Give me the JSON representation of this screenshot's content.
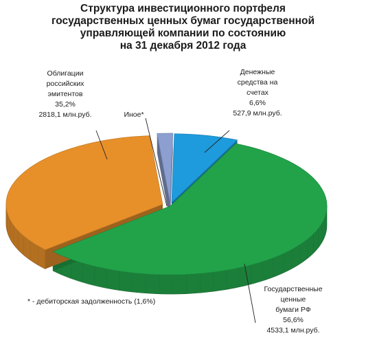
{
  "title_lines": [
    "Структура инвестиционного портфеля",
    "государственных ценных бумаг государственной",
    "управляющей компании по состоянию",
    "на 31 декабря 2012 года"
  ],
  "footnote": "*  -  дебиторская задолженность (1,6%)",
  "chart_data": {
    "type": "pie",
    "style": "3d-exploded",
    "slices": [
      {
        "name_lines": [
          "Денежные",
          "средства на",
          "счетах"
        ],
        "percent_label": "6,6%",
        "amount_label": "527,9 млн.руб.",
        "value": 6.6,
        "color": "#1e9bdc"
      },
      {
        "name_lines": [
          "Государственные",
          "ценные",
          "бумаги РФ"
        ],
        "percent_label": "56,6%",
        "amount_label": "4533,1 млн.руб.",
        "value": 56.6,
        "color": "#22a34a"
      },
      {
        "name_lines": [
          "Облигации",
          "российских",
          "эмитентов"
        ],
        "percent_label": "35,2%",
        "amount_label": "2818,1 млн.руб.",
        "value": 35.2,
        "color": "#e7902a"
      },
      {
        "name_lines": [
          "Иное*"
        ],
        "percent_label": "",
        "amount_label": "",
        "value": 1.6,
        "color": "#8c9fd0"
      }
    ]
  }
}
